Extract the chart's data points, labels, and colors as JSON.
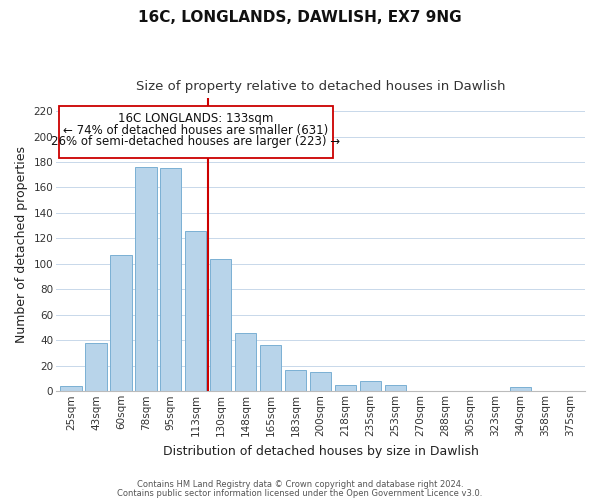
{
  "title": "16C, LONGLANDS, DAWLISH, EX7 9NG",
  "subtitle": "Size of property relative to detached houses in Dawlish",
  "xlabel": "Distribution of detached houses by size in Dawlish",
  "ylabel": "Number of detached properties",
  "bar_labels": [
    "25sqm",
    "43sqm",
    "60sqm",
    "78sqm",
    "95sqm",
    "113sqm",
    "130sqm",
    "148sqm",
    "165sqm",
    "183sqm",
    "200sqm",
    "218sqm",
    "235sqm",
    "253sqm",
    "270sqm",
    "288sqm",
    "305sqm",
    "323sqm",
    "340sqm",
    "358sqm",
    "375sqm"
  ],
  "bar_values": [
    4,
    38,
    107,
    176,
    175,
    126,
    104,
    46,
    36,
    17,
    15,
    5,
    8,
    5,
    0,
    0,
    0,
    0,
    3,
    0,
    0
  ],
  "bar_color": "#b8d4ea",
  "bar_edge_color": "#7ab0d4",
  "vline_color": "#cc0000",
  "ylim": [
    0,
    230
  ],
  "yticks": [
    0,
    20,
    40,
    60,
    80,
    100,
    120,
    140,
    160,
    180,
    200,
    220
  ],
  "annotation_title": "16C LONGLANDS: 133sqm",
  "annotation_line1": "← 74% of detached houses are smaller (631)",
  "annotation_line2": "26% of semi-detached houses are larger (223) →",
  "annotation_box_edge": "#cc0000",
  "footer1": "Contains HM Land Registry data © Crown copyright and database right 2024.",
  "footer2": "Contains public sector information licensed under the Open Government Licence v3.0.",
  "title_fontsize": 11,
  "subtitle_fontsize": 9.5,
  "axis_label_fontsize": 9,
  "tick_fontsize": 7.5,
  "annotation_fontsize": 8.5,
  "footer_fontsize": 6,
  "background_color": "#ffffff",
  "grid_color": "#c8d8ea"
}
